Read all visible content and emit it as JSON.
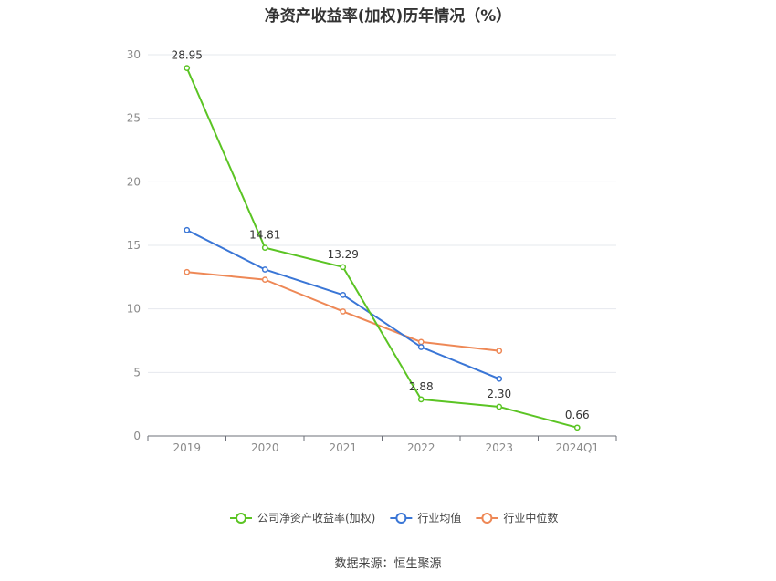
{
  "title": "净资产收益率(加权)历年情况（%）",
  "source": "数据来源：恒生聚源",
  "chart_data": {
    "type": "line",
    "title": "净资产收益率(加权)历年情况（%）",
    "x": [
      "2019",
      "2020",
      "2021",
      "2022",
      "2023",
      "2024Q1"
    ],
    "yticks": [
      "0",
      "5",
      "10",
      "15",
      "20",
      "25",
      "30"
    ],
    "ylim": [
      0,
      30
    ],
    "grid": true,
    "legend_position": "bottom-center",
    "series": [
      {
        "name": "公司净资产收益率(加权)",
        "color": "#5bc424",
        "values": [
          28.95,
          14.81,
          13.29,
          2.88,
          2.3,
          0.66
        ],
        "labels": [
          "28.95",
          "14.81",
          "13.29",
          "2.88",
          "2.30",
          "0.66"
        ]
      },
      {
        "name": "行业均值",
        "color": "#3a76d6",
        "values": [
          16.2,
          13.1,
          11.1,
          7.0,
          4.5,
          null
        ]
      },
      {
        "name": "行业中位数",
        "color": "#ee8856",
        "values": [
          12.9,
          12.3,
          9.8,
          7.4,
          6.7,
          null
        ]
      }
    ]
  }
}
